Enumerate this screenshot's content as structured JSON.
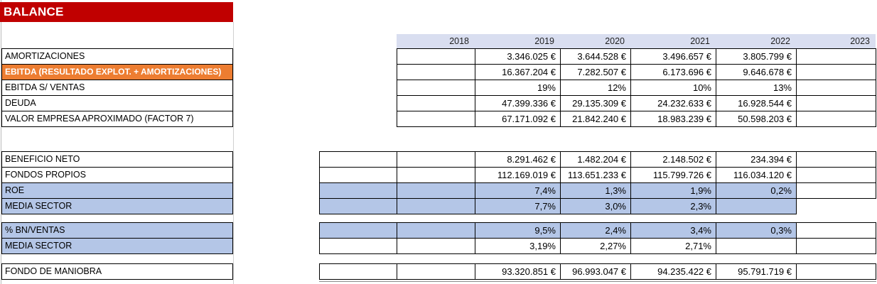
{
  "title": "BALANCE",
  "colors": {
    "banner": "#C00000",
    "orange": "#ED7D31",
    "blue": "#B4C6E7",
    "header_fill": "#D9DEF0",
    "cell_border": "#000000"
  },
  "years": [
    "2018",
    "2019",
    "2020",
    "2021",
    "2022",
    "2023"
  ],
  "blocks": [
    {
      "id": "ebitda-summary",
      "rows": [
        {
          "label": "AMORTIZACIONES",
          "label_bg": "w",
          "cells": [
            {
              "v": "",
              "bg": "w"
            },
            {
              "v": "3.346.025 €",
              "bg": "w"
            },
            {
              "v": "3.644.528 €",
              "bg": "w"
            },
            {
              "v": "3.496.657 €",
              "bg": "w"
            },
            {
              "v": "3.805.799 €",
              "bg": "w"
            },
            {
              "v": "",
              "bg": "w"
            }
          ]
        },
        {
          "label": "EBITDA (RESULTADO EXPLOT. + AMORTIZACIONES)",
          "label_bg": "o",
          "cells": [
            {
              "v": "",
              "bg": "w"
            },
            {
              "v": "16.367.204 €",
              "bg": "w"
            },
            {
              "v": "7.282.507 €",
              "bg": "w"
            },
            {
              "v": "6.173.696 €",
              "bg": "w"
            },
            {
              "v": "9.646.678 €",
              "bg": "w"
            },
            {
              "v": "",
              "bg": "w"
            }
          ]
        },
        {
          "label": "EBITDA S/ VENTAS",
          "label_bg": "w",
          "cells": [
            {
              "v": "",
              "bg": "w"
            },
            {
              "v": "19%",
              "bg": "w"
            },
            {
              "v": "12%",
              "bg": "w"
            },
            {
              "v": "10%",
              "bg": "w"
            },
            {
              "v": "13%",
              "bg": "w"
            },
            {
              "v": "",
              "bg": "w"
            }
          ]
        },
        {
          "label": "DEUDA",
          "label_bg": "w",
          "cells": [
            {
              "v": "",
              "bg": "w"
            },
            {
              "v": "47.399.336 €",
              "bg": "w"
            },
            {
              "v": "29.135.309 €",
              "bg": "w"
            },
            {
              "v": "24.232.633 €",
              "bg": "w"
            },
            {
              "v": "16.928.544 €",
              "bg": "w"
            },
            {
              "v": "",
              "bg": "w"
            }
          ]
        },
        {
          "label": "VALOR EMPRESA APROXIMADO (FACTOR 7)",
          "label_bg": "w",
          "cells": [
            {
              "v": "",
              "bg": "w"
            },
            {
              "v": "67.171.092 €",
              "bg": "w"
            },
            {
              "v": "21.842.240 €",
              "bg": "w"
            },
            {
              "v": "18.983.239 €",
              "bg": "w"
            },
            {
              "v": "50.598.203 €",
              "bg": "w"
            },
            {
              "v": "",
              "bg": "w"
            }
          ]
        }
      ]
    },
    {
      "id": "beneficio-roe",
      "rows": [
        {
          "label": "BENEFICIO NETO",
          "label_bg": "w",
          "cells": [
            {
              "v": "",
              "bg": "w"
            },
            {
              "v": "",
              "bg": "w"
            },
            {
              "v": "8.291.462 €",
              "bg": "w"
            },
            {
              "v": "1.482.204 €",
              "bg": "w"
            },
            {
              "v": "2.148.502 €",
              "bg": "w"
            },
            {
              "v": "234.394 €",
              "bg": "w"
            },
            {
              "v": "",
              "bg": "w"
            }
          ]
        },
        {
          "label": "FONDOS PROPIOS",
          "label_bg": "w",
          "cells": [
            {
              "v": "",
              "bg": "w"
            },
            {
              "v": "",
              "bg": "w"
            },
            {
              "v": "112.169.019 €",
              "bg": "w"
            },
            {
              "v": "113.651.233 €",
              "bg": "w"
            },
            {
              "v": "115.799.726 €",
              "bg": "w"
            },
            {
              "v": "116.034.120 €",
              "bg": "w"
            },
            {
              "v": "",
              "bg": "w"
            }
          ]
        },
        {
          "label": "ROE",
          "label_bg": "b",
          "cells": [
            {
              "v": "",
              "bg": "b"
            },
            {
              "v": "",
              "bg": "b"
            },
            {
              "v": "7,4%",
              "bg": "b"
            },
            {
              "v": "1,3%",
              "bg": "b"
            },
            {
              "v": "1,9%",
              "bg": "b"
            },
            {
              "v": "0,2%",
              "bg": "b"
            },
            {
              "v": "",
              "bg": "w"
            }
          ]
        },
        {
          "label": "MEDIA SECTOR",
          "label_bg": "b",
          "cells": [
            {
              "v": "",
              "bg": "b"
            },
            {
              "v": "",
              "bg": "b"
            },
            {
              "v": "7,7%",
              "bg": "b"
            },
            {
              "v": "3,0%",
              "bg": "b"
            },
            {
              "v": "2,3%",
              "bg": "b"
            },
            {
              "v": "",
              "bg": "b"
            },
            {
              "v": "",
              "bg": "n"
            }
          ]
        }
      ]
    },
    {
      "id": "bn-ventas",
      "rows": [
        {
          "label": "% BN/VENTAS",
          "label_bg": "b",
          "cells": [
            {
              "v": "",
              "bg": "b"
            },
            {
              "v": "",
              "bg": "b"
            },
            {
              "v": "9,5%",
              "bg": "b"
            },
            {
              "v": "2,4%",
              "bg": "b"
            },
            {
              "v": "3,4%",
              "bg": "b"
            },
            {
              "v": "0,3%",
              "bg": "b"
            },
            {
              "v": "",
              "bg": "w"
            }
          ]
        },
        {
          "label": "MEDIA SECTOR",
          "label_bg": "b",
          "cells": [
            {
              "v": "",
              "bg": "w"
            },
            {
              "v": "",
              "bg": "w"
            },
            {
              "v": "3,19%",
              "bg": "w"
            },
            {
              "v": "2,27%",
              "bg": "w"
            },
            {
              "v": "2,71%",
              "bg": "w"
            },
            {
              "v": "",
              "bg": "w"
            },
            {
              "v": "",
              "bg": "w"
            }
          ]
        }
      ]
    },
    {
      "id": "fondo-maniobra",
      "rows": [
        {
          "label": "FONDO DE MANIOBRA",
          "label_bg": "w",
          "cells": [
            {
              "v": "",
              "bg": "w"
            },
            {
              "v": "",
              "bg": "w"
            },
            {
              "v": "93.320.851 €",
              "bg": "w"
            },
            {
              "v": "96.993.047 €",
              "bg": "w"
            },
            {
              "v": "94.235.422 €",
              "bg": "w"
            },
            {
              "v": "95.791.719 €",
              "bg": "w"
            },
            {
              "v": "",
              "bg": "w"
            }
          ]
        }
      ]
    }
  ]
}
